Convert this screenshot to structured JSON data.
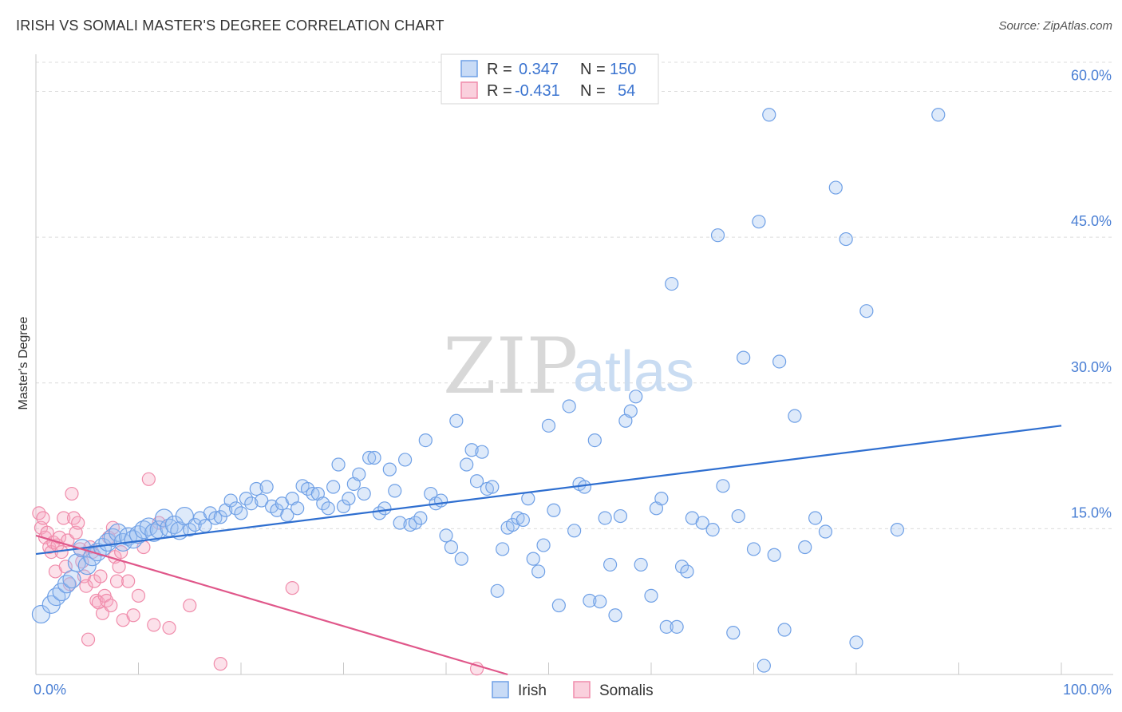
{
  "header": {
    "title": "IRISH VS SOMALI MASTER'S DEGREE CORRELATION CHART",
    "source": "Source: ZipAtlas.com"
  },
  "watermark": {
    "zip": "ZIP",
    "atlas": "atlas"
  },
  "legend": {
    "rows": [
      {
        "r_label": "R =",
        "r_value": "0.347",
        "n_label": "N =",
        "n_value": "150",
        "color": "#6fa0e6"
      },
      {
        "r_label": "R =",
        "r_value": "-0.431",
        "n_label": "N =",
        "n_value": "54",
        "color": "#f08cab"
      }
    ]
  },
  "bottom_legend": [
    {
      "label": "Irish",
      "color": "#6fa0e6"
    },
    {
      "label": "Somalis",
      "color": "#f08cab"
    }
  ],
  "chart_data": {
    "type": "scatter",
    "title": "IRISH VS SOMALI MASTER'S DEGREE CORRELATION CHART",
    "xlabel": "",
    "ylabel": "Master's Degree",
    "xlim": [
      0,
      100
    ],
    "ylim": [
      0,
      63
    ],
    "x_tick_labels": [
      "0.0%",
      "100.0%"
    ],
    "y_ticks": [
      15,
      30,
      45,
      60
    ],
    "y_tick_labels": [
      "15.0%",
      "30.0%",
      "45.0%",
      "60.0%"
    ],
    "grid": true,
    "legend_position": "top-center",
    "series": [
      {
        "name": "Irish",
        "color": "#6fa0e6",
        "line_color": "#2f6fd0",
        "r": 0.347,
        "n": 150,
        "trend": {
          "x": [
            0,
            100
          ],
          "y": [
            12.4,
            25.6
          ]
        },
        "points": [
          [
            0.5,
            6.2
          ],
          [
            1.5,
            7.2
          ],
          [
            2,
            8
          ],
          [
            2.5,
            8.5
          ],
          [
            3,
            9.3
          ],
          [
            3.5,
            9.8
          ],
          [
            4,
            11.5
          ],
          [
            4.5,
            13
          ],
          [
            5,
            11.2
          ],
          [
            5.5,
            12.1
          ],
          [
            6,
            12.6
          ],
          [
            6.5,
            13.1
          ],
          [
            7,
            13.6
          ],
          [
            7.5,
            14.1
          ],
          [
            8,
            14.6
          ],
          [
            8.5,
            13.6
          ],
          [
            9,
            14.2
          ],
          [
            9.5,
            13.9
          ],
          [
            10,
            14.4
          ],
          [
            10.5,
            14.9
          ],
          [
            11,
            15.2
          ],
          [
            11.5,
            14.6
          ],
          [
            12,
            14.9
          ],
          [
            12.5,
            16.1
          ],
          [
            13,
            15.1
          ],
          [
            13.5,
            15.4
          ],
          [
            14,
            14.8
          ],
          [
            14.5,
            16.3
          ],
          [
            15,
            14.9
          ],
          [
            15.5,
            15.4
          ],
          [
            16,
            16.1
          ],
          [
            16.5,
            15.3
          ],
          [
            17,
            16.6
          ],
          [
            17.5,
            16.1
          ],
          [
            18,
            16.2
          ],
          [
            18.5,
            16.9
          ],
          [
            19,
            17.9
          ],
          [
            19.5,
            17.1
          ],
          [
            20,
            16.6
          ],
          [
            20.5,
            18.1
          ],
          [
            21,
            17.6
          ],
          [
            21.5,
            19.1
          ],
          [
            22,
            17.9
          ],
          [
            22.5,
            19.3
          ],
          [
            23,
            17.3
          ],
          [
            23.5,
            16.9
          ],
          [
            24,
            17.6
          ],
          [
            24.5,
            16.4
          ],
          [
            25,
            18.1
          ],
          [
            25.5,
            17.1
          ],
          [
            26,
            19.4
          ],
          [
            26.5,
            19.1
          ],
          [
            27,
            18.6
          ],
          [
            27.5,
            18.6
          ],
          [
            28,
            17.6
          ],
          [
            28.5,
            17.1
          ],
          [
            29,
            19.3
          ],
          [
            29.5,
            21.6
          ],
          [
            30,
            17.3
          ],
          [
            30.5,
            18.1
          ],
          [
            31,
            19.6
          ],
          [
            31.5,
            20.6
          ],
          [
            32,
            18.6
          ],
          [
            32.5,
            22.3
          ],
          [
            33,
            22.3
          ],
          [
            33.5,
            16.6
          ],
          [
            34,
            17.1
          ],
          [
            34.5,
            21.1
          ],
          [
            35,
            18.9
          ],
          [
            35.5,
            15.6
          ],
          [
            36,
            22.1
          ],
          [
            36.5,
            15.4
          ],
          [
            37,
            15.6
          ],
          [
            37.5,
            16.1
          ],
          [
            38,
            24.1
          ],
          [
            38.5,
            18.6
          ],
          [
            39,
            17.6
          ],
          [
            39.5,
            17.9
          ],
          [
            40,
            14.3
          ],
          [
            40.5,
            13.1
          ],
          [
            41,
            26.1
          ],
          [
            41.5,
            11.9
          ],
          [
            42,
            21.6
          ],
          [
            42.5,
            23.1
          ],
          [
            43,
            19.9
          ],
          [
            43.5,
            22.9
          ],
          [
            44,
            19.1
          ],
          [
            44.5,
            19.3
          ],
          [
            45,
            8.6
          ],
          [
            45.5,
            12.9
          ],
          [
            46,
            15.1
          ],
          [
            46.5,
            15.4
          ],
          [
            47,
            16.1
          ],
          [
            47.5,
            15.9
          ],
          [
            48,
            18.1
          ],
          [
            48.5,
            11.9
          ],
          [
            49,
            10.6
          ],
          [
            49.5,
            13.3
          ],
          [
            50,
            25.6
          ],
          [
            50.5,
            16.9
          ],
          [
            51,
            7.1
          ],
          [
            52,
            27.6
          ],
          [
            52.5,
            14.8
          ],
          [
            53,
            19.6
          ],
          [
            53.5,
            19.3
          ],
          [
            54,
            7.6
          ],
          [
            54.5,
            24.1
          ],
          [
            55,
            7.5
          ],
          [
            55.5,
            16.1
          ],
          [
            56,
            11.3
          ],
          [
            56.5,
            6.1
          ],
          [
            57,
            16.3
          ],
          [
            57.5,
            26.1
          ],
          [
            58,
            27.1
          ],
          [
            58.5,
            28.6
          ],
          [
            59,
            11.3
          ],
          [
            60,
            8.1
          ],
          [
            60.5,
            17.1
          ],
          [
            61,
            18.1
          ],
          [
            61.5,
            4.9
          ],
          [
            62,
            40.2
          ],
          [
            62.5,
            4.9
          ],
          [
            63,
            11.1
          ],
          [
            63.5,
            10.6
          ],
          [
            64,
            16.1
          ],
          [
            65,
            15.6
          ],
          [
            66,
            14.9
          ],
          [
            66.5,
            45.2
          ],
          [
            67,
            19.4
          ],
          [
            68,
            4.3
          ],
          [
            68.5,
            16.3
          ],
          [
            69,
            32.6
          ],
          [
            70,
            12.9
          ],
          [
            70.5,
            46.6
          ],
          [
            71,
            0.9
          ],
          [
            71.5,
            57.6
          ],
          [
            72,
            12.3
          ],
          [
            72.5,
            32.2
          ],
          [
            73,
            4.6
          ],
          [
            74,
            26.6
          ],
          [
            75,
            13.1
          ],
          [
            76,
            16.1
          ],
          [
            77,
            14.7
          ],
          [
            78,
            50.1
          ],
          [
            79,
            44.8
          ],
          [
            80,
            3.3
          ],
          [
            81,
            37.4
          ],
          [
            84,
            14.9
          ],
          [
            88,
            57.6
          ]
        ]
      },
      {
        "name": "Somalis",
        "color": "#f08cab",
        "line_color": "#e0578a",
        "r": -0.431,
        "n": 54,
        "trend": {
          "x": [
            0,
            46
          ],
          "y": [
            14.3,
            0
          ]
        },
        "points": [
          [
            0.3,
            16.6
          ],
          [
            0.5,
            15.1
          ],
          [
            0.7,
            16.1
          ],
          [
            0.9,
            14.1
          ],
          [
            1.1,
            14.6
          ],
          [
            1.3,
            13.1
          ],
          [
            1.5,
            12.6
          ],
          [
            1.7,
            13.6
          ],
          [
            1.9,
            10.6
          ],
          [
            2.1,
            13.3
          ],
          [
            2.3,
            14.1
          ],
          [
            2.5,
            12.6
          ],
          [
            2.7,
            16.1
          ],
          [
            2.9,
            11.1
          ],
          [
            3.1,
            13.8
          ],
          [
            3.3,
            9.3
          ],
          [
            3.5,
            18.6
          ],
          [
            3.7,
            16.1
          ],
          [
            3.9,
            14.6
          ],
          [
            4.1,
            15.6
          ],
          [
            4.3,
            12.9
          ],
          [
            4.5,
            11.6
          ],
          [
            4.7,
            10.1
          ],
          [
            4.9,
            9.1
          ],
          [
            5.1,
            3.6
          ],
          [
            5.3,
            13.1
          ],
          [
            5.5,
            12.6
          ],
          [
            5.7,
            9.6
          ],
          [
            5.9,
            7.6
          ],
          [
            6.1,
            7.4
          ],
          [
            6.3,
            10.1
          ],
          [
            6.5,
            6.3
          ],
          [
            6.7,
            8.1
          ],
          [
            6.9,
            7.6
          ],
          [
            7.1,
            14.1
          ],
          [
            7.3,
            7.1
          ],
          [
            7.5,
            15.1
          ],
          [
            7.7,
            12.1
          ],
          [
            7.9,
            9.6
          ],
          [
            8.1,
            11.1
          ],
          [
            8.3,
            12.6
          ],
          [
            8.5,
            5.6
          ],
          [
            9,
            9.6
          ],
          [
            9.5,
            6.1
          ],
          [
            10,
            8.1
          ],
          [
            10.5,
            13.1
          ],
          [
            11,
            20.1
          ],
          [
            11.5,
            5.1
          ],
          [
            12,
            15.6
          ],
          [
            13,
            4.8
          ],
          [
            15,
            7.1
          ],
          [
            18,
            1.1
          ],
          [
            25,
            8.9
          ],
          [
            43,
            0.6
          ]
        ]
      }
    ]
  }
}
